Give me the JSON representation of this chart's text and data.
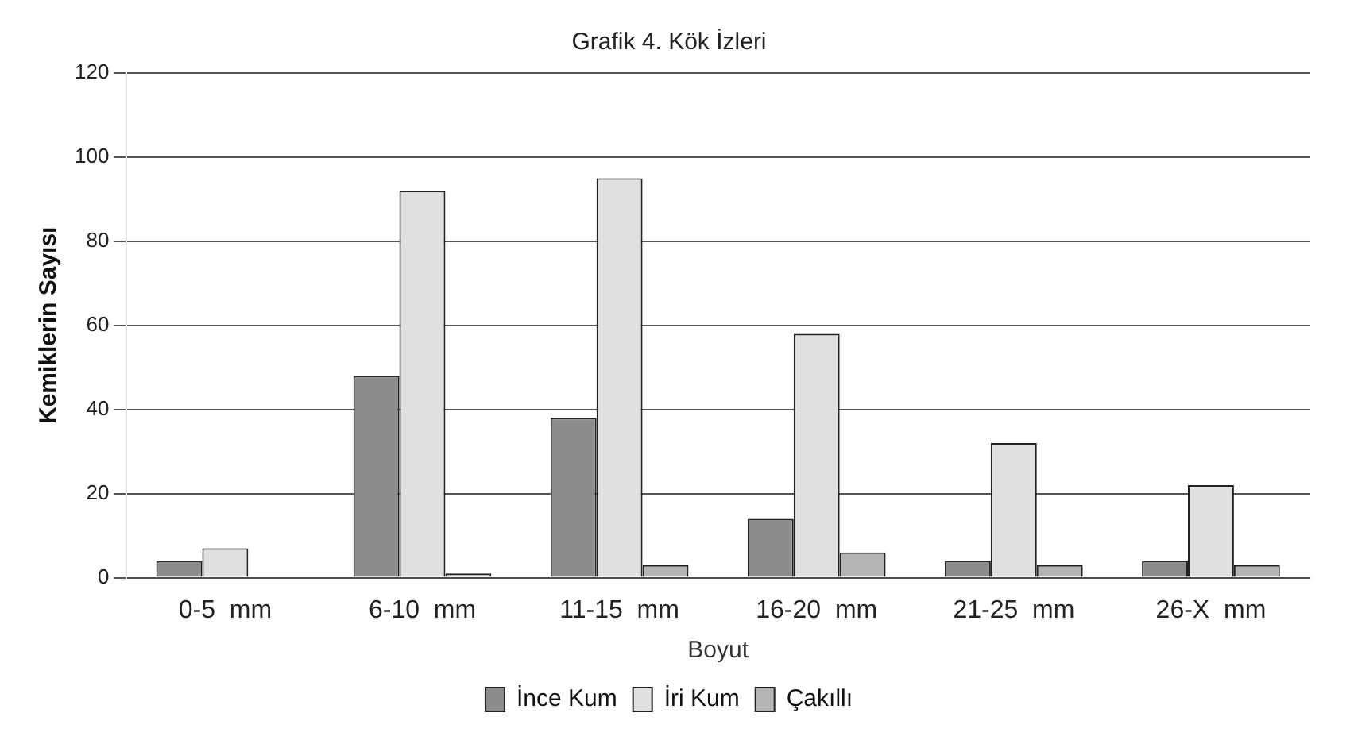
{
  "chart_data": {
    "type": "bar",
    "title": "Grafik 4. Kök İzleri",
    "xlabel": "Boyut",
    "ylabel": "Kemiklerin Sayısı",
    "categories": [
      "0-5  mm",
      "6-10  mm",
      "11-15  mm",
      "16-20  mm",
      "21-25  mm",
      "26-X  mm"
    ],
    "series": [
      {
        "name": "İnce Kum",
        "color": "#8c8c8c",
        "values": [
          4,
          48,
          38,
          14,
          4,
          4
        ]
      },
      {
        "name": "İri Kum",
        "color": "#e0e0e0",
        "values": [
          7,
          92,
          95,
          58,
          32,
          22
        ]
      },
      {
        "name": "Çakıllı",
        "color": "#b4b4b4",
        "values": [
          0,
          1,
          3,
          6,
          3,
          3
        ]
      }
    ],
    "ylim": [
      0,
      120
    ],
    "yticks": [
      0,
      20,
      40,
      60,
      80,
      100,
      120
    ],
    "grid": "y",
    "legend": "bottom"
  }
}
